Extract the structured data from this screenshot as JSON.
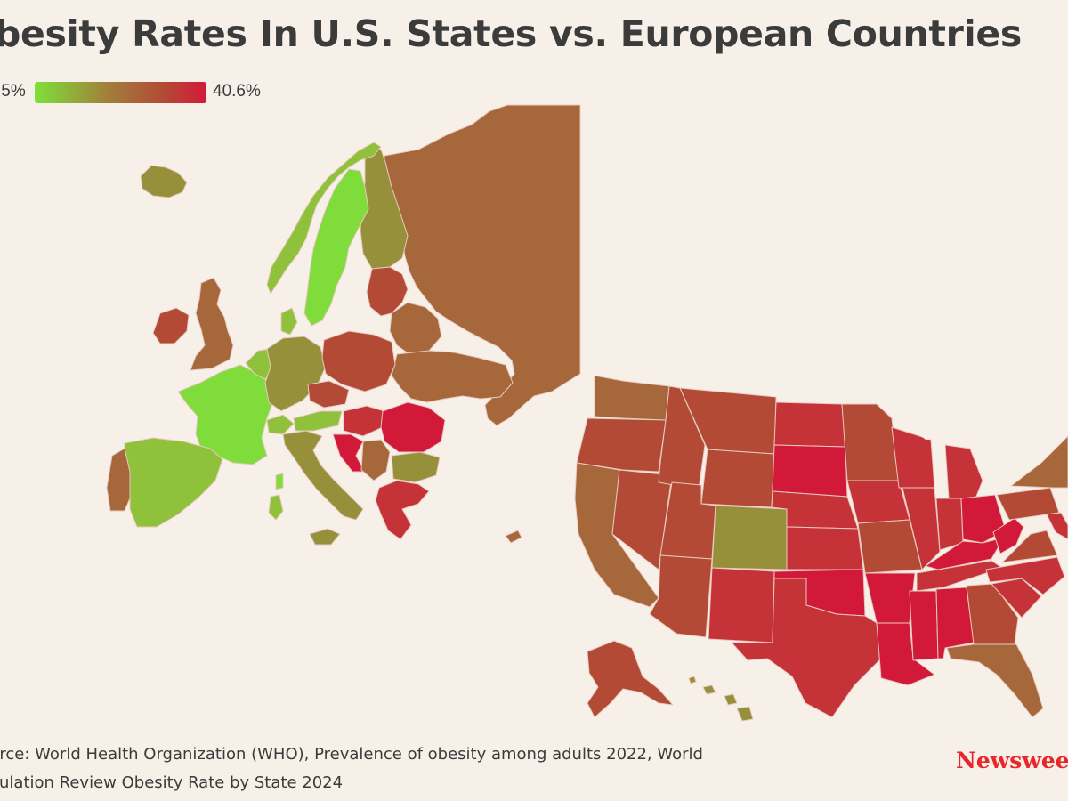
{
  "title": "besity Rates In U.S. States vs. European Countries",
  "legend": {
    "min_label": ".5%",
    "max_label": "40.6%",
    "colors": [
      "#7fe03a",
      "#a37a3b",
      "#b24a35",
      "#d3193a"
    ]
  },
  "source": {
    "line1": "urce: World Health Organization (WHO), Prevalence of obesity among adults 2022, World",
    "line2": "oulation Review Obesity Rate by State 2024"
  },
  "brand": "Newswee",
  "map_colors": {
    "green": "#7fdc3a",
    "light_green": "#8fc13a",
    "olive": "#96903a",
    "brown": "#a6673a",
    "red_brown": "#b24a35",
    "red": "#c53238",
    "crimson": "#d3193a",
    "border": "#e9c9bf"
  }
}
